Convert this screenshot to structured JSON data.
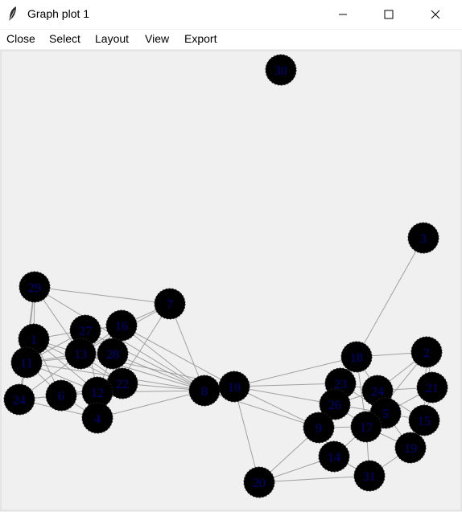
{
  "window": {
    "title": "Graph plot 1"
  },
  "menu": [
    "Close",
    "Select",
    "Layout",
    "View",
    "Export"
  ],
  "colors": {
    "node_fill": "#000000",
    "node_label": "#000080",
    "edge": "#a0a0a0",
    "canvas_bg": "#f0f0f0"
  },
  "graph": {
    "nodes": [
      "30",
      "3",
      "29",
      "7",
      "16",
      "27",
      "1",
      "13",
      "28",
      "11",
      "22",
      "24",
      "6",
      "12",
      "4",
      "8",
      "10",
      "18",
      "2",
      "23",
      "24",
      "21",
      "26",
      "5",
      "9",
      "17",
      "15",
      "19",
      "14",
      "31",
      "20"
    ]
  }
}
